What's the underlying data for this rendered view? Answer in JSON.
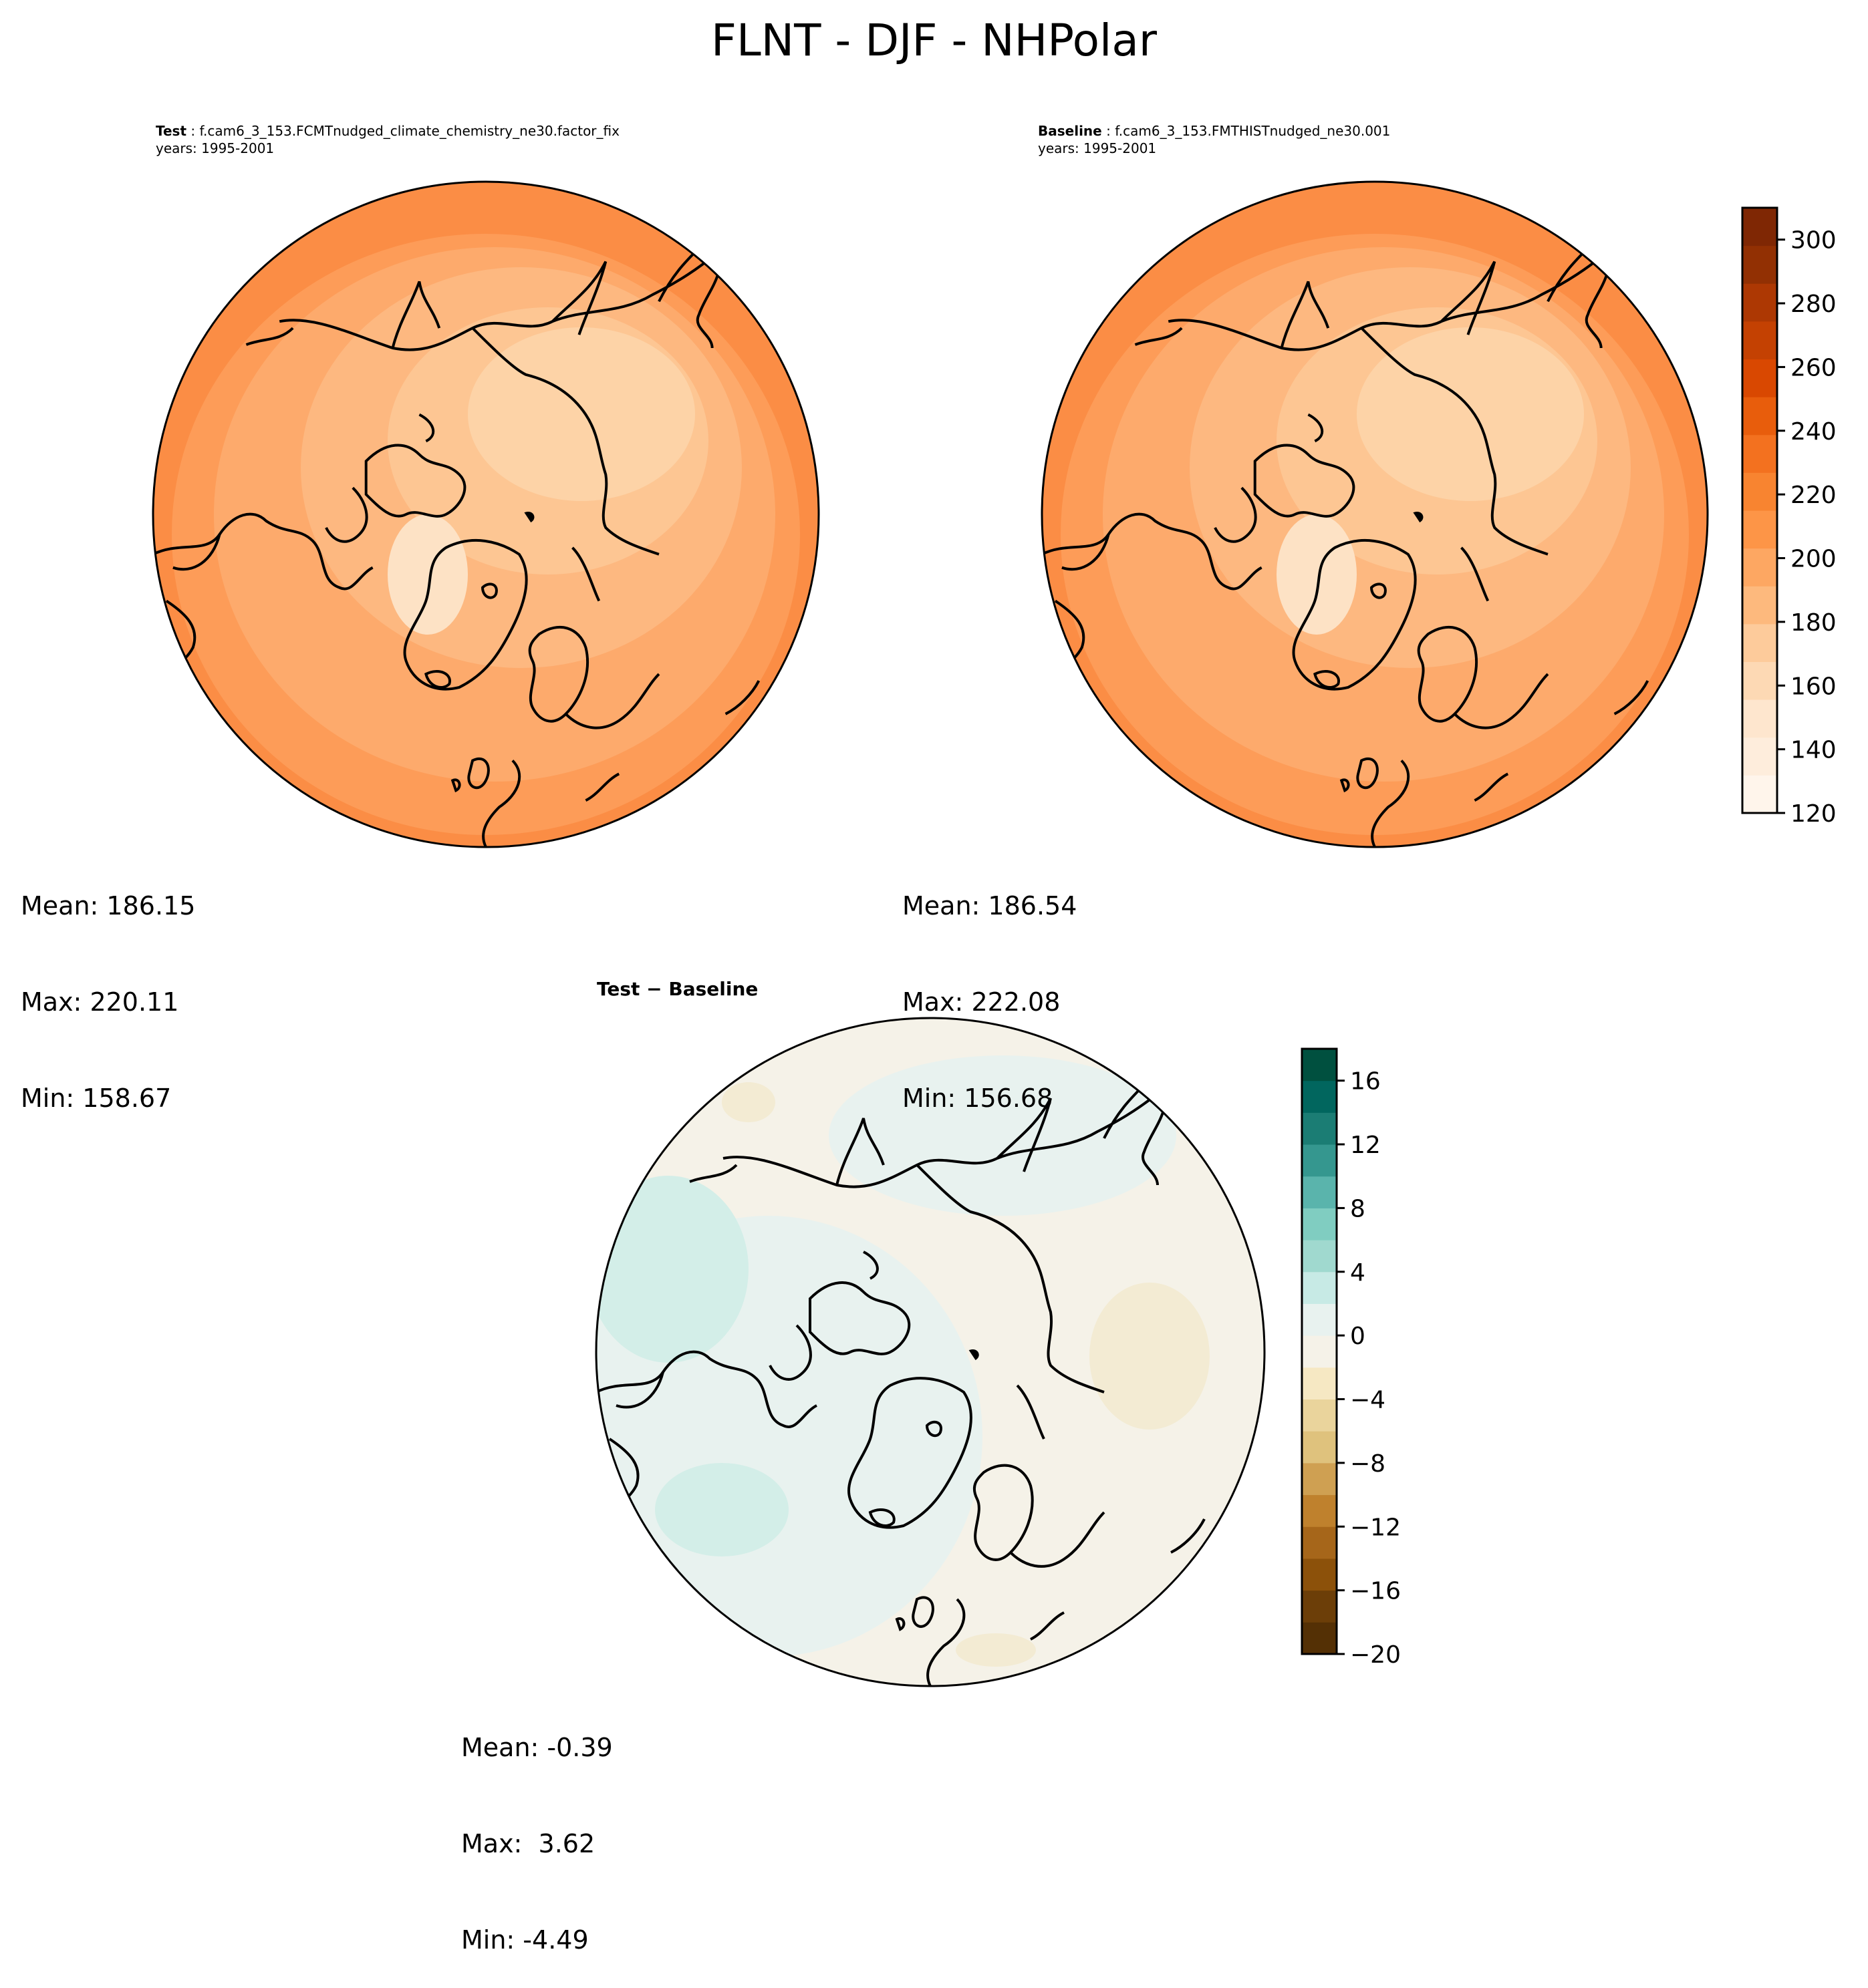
{
  "title": "FLNT - DJF - NHPolar",
  "panels": [
    {
      "id": "test",
      "title_bold": "Test",
      "title_rest": " : f.cam6_3_153.FCMTnudged_climate_chemistry_ne30.factor_fix",
      "subtitle": "years: 1995-2001",
      "stats": {
        "mean": "Mean: 186.15",
        "max": "Max: 220.11",
        "min": "Min: 158.67"
      },
      "colors": [
        "#fdd3a7",
        "#fdc693",
        "#fdb880",
        "#fdaa6c",
        "#fd9c58",
        "#fb8d45"
      ]
    },
    {
      "id": "baseline",
      "title_bold": "Baseline",
      "title_rest": " : f.cam6_3_153.FMTHISTnudged_ne30.001",
      "subtitle": "years: 1995-2001",
      "stats": {
        "mean": "Mean: 186.54",
        "max": "Max: 222.08",
        "min": "Min: 156.68"
      },
      "colors": [
        "#fdd3a7",
        "#fdc693",
        "#fdb880",
        "#fdaa6c",
        "#fd9c58",
        "#fb8d45"
      ]
    },
    {
      "id": "diff",
      "title_bold": "Test − Baseline",
      "title_rest": "",
      "subtitle": "",
      "stats": {
        "mean": "Mean: -0.39",
        "max": "Max:  3.62",
        "min": "Min: -4.49"
      },
      "colors": [
        "#f5f2e8",
        "#e8f2ef",
        "#d3eee8",
        "#f3ebd3"
      ]
    }
  ],
  "colorbar_main": {
    "ticks": [
      "120",
      "140",
      "160",
      "180",
      "200",
      "220",
      "240",
      "260",
      "280",
      "300"
    ],
    "min": 120,
    "max": 310,
    "tick_values": [
      120,
      140,
      160,
      180,
      200,
      220,
      240,
      260,
      280,
      300
    ],
    "colors": [
      "#fff5eb",
      "#feeddc",
      "#fee6ce",
      "#fdd9b4",
      "#fdcb9b",
      "#fdb97d",
      "#fda762",
      "#fd9547",
      "#f88430",
      "#f3711f",
      "#e85d0c",
      "#d94801",
      "#c44102",
      "#ad3803",
      "#923003",
      "#7f2704"
    ]
  },
  "colorbar_diff": {
    "ticks": [
      "−20",
      "−16",
      "−12",
      "−8",
      "−4",
      "0",
      "4",
      "8",
      "12",
      "16"
    ],
    "min": -20,
    "max": 18,
    "tick_values": [
      -20,
      -16,
      -12,
      -8,
      -4,
      0,
      4,
      8,
      12,
      16
    ],
    "colors": [
      "#543005",
      "#6c3e08",
      "#8c510a",
      "#a6661a",
      "#bf812d",
      "#cfa052",
      "#dfc27d",
      "#ead49c",
      "#f6e8c3",
      "#f5f2e8",
      "#e8f2ef",
      "#c7eae5",
      "#a0d9cf",
      "#80cdc1",
      "#5ab4ac",
      "#35978f",
      "#1b7d74",
      "#01665e",
      "#00503f"
    ]
  }
}
